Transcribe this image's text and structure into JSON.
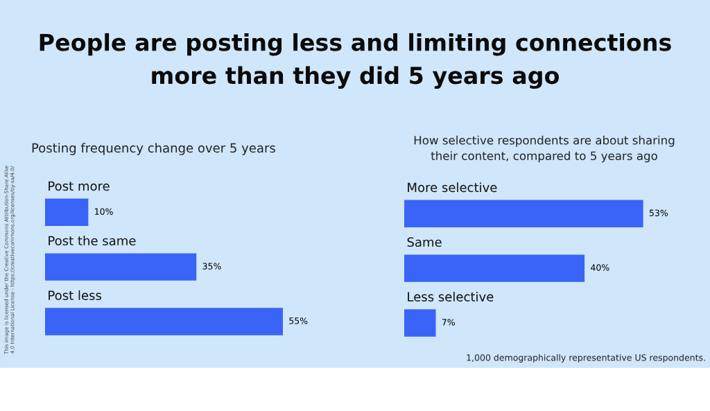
{
  "chart_data": [
    {
      "type": "bar",
      "orientation": "horizontal",
      "title": "People are posting less and limiting connections\nmore than they did 5 years ago",
      "subtitle": "Posting frequency change over 5 years",
      "categories": [
        "Post more",
        "Post the same",
        "Post less"
      ],
      "values": [
        10,
        35,
        55
      ],
      "value_labels": [
        "10%",
        "35%",
        "55%"
      ],
      "color": "#3a63f7",
      "annotations": [
        "This image is licensed under the Creative Commons Attribution-Share Alike\n4.0 International License - https://creativecommons.org/licenses/by-sa/4.0/"
      ]
    },
    {
      "type": "bar",
      "orientation": "horizontal",
      "subtitle": "How selective respondents are about sharing\ntheir content, compared to 5 years ago",
      "categories": [
        "More selective",
        "Same",
        "Less selective"
      ],
      "values": [
        53,
        40,
        7
      ],
      "value_labels": [
        "53%",
        "40%",
        "7%"
      ],
      "color": "#3a63f7",
      "annotations": [
        "1,000 demographically representative US respondents."
      ]
    }
  ]
}
